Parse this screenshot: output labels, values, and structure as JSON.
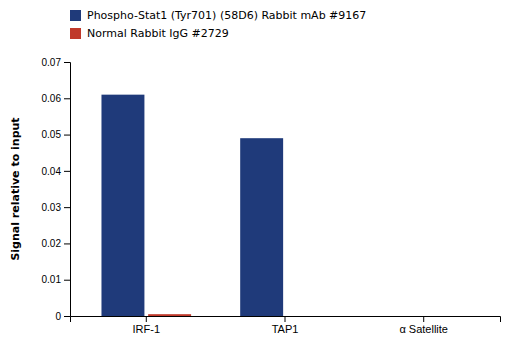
{
  "chart_data": {
    "type": "bar",
    "categories": [
      "IRF-1",
      "TAP1",
      "α Satellite"
    ],
    "series": [
      {
        "name": "Phospho-Stat1 (Tyr701) (58D6) Rabbit mAb #9167",
        "color": "#1F3A7A",
        "values": [
          0.061,
          0.049,
          0.0
        ]
      },
      {
        "name": "Normal Rabbit IgG #2729",
        "color": "#C0392B",
        "values": [
          0.0005,
          0.0,
          0.0
        ]
      }
    ],
    "ylabel": "Signal relative to input",
    "ylim": [
      0,
      0.07
    ],
    "yticks": [
      0,
      0.01,
      0.02,
      0.03,
      0.04,
      0.05,
      0.06,
      0.07
    ],
    "legend": "upper-left",
    "grid": false
  }
}
